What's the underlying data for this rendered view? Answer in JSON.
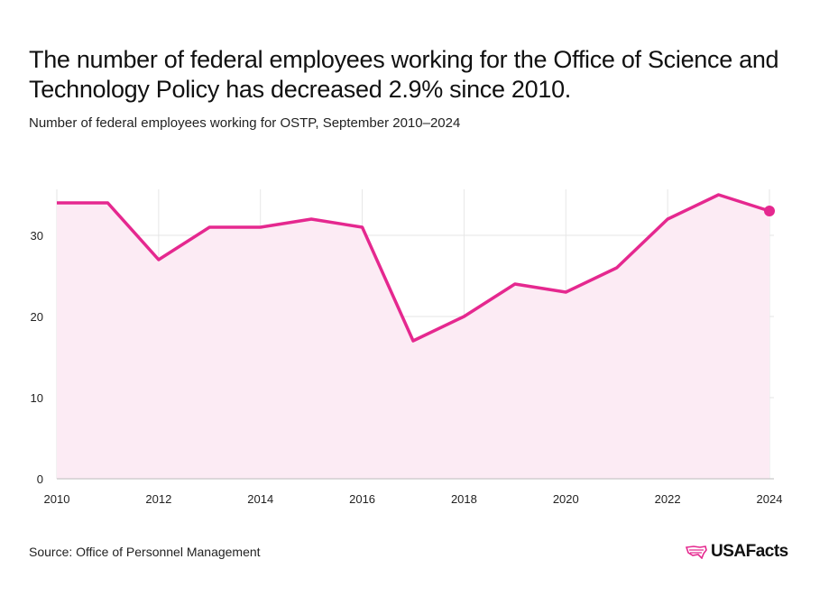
{
  "title": "The number of federal employees working for the Office of Science and Technology Policy has decreased 2.9% since 2010.",
  "subtitle": "Number of federal employees working for OSTP, September 2010–2024",
  "source": "Source: Office of Personnel Management",
  "logo": "USAFacts",
  "colors": {
    "line": "#e5288f",
    "fill": "#fcebf4",
    "grid": "#e6e6e6"
  },
  "chart_data": {
    "type": "area",
    "x": [
      2010,
      2011,
      2012,
      2013,
      2014,
      2015,
      2016,
      2017,
      2018,
      2019,
      2020,
      2021,
      2022,
      2023,
      2024
    ],
    "values": [
      34,
      34,
      27,
      31,
      31,
      32,
      31,
      17,
      20,
      24,
      23,
      26,
      32,
      35,
      33
    ],
    "xlim": [
      2010,
      2024
    ],
    "ylim": [
      0,
      37
    ],
    "xticks": [
      "2010",
      "2012",
      "2014",
      "2016",
      "2018",
      "2020",
      "2022",
      "2024"
    ],
    "yticks": [
      "0",
      "10",
      "20",
      "30"
    ],
    "grid": true,
    "xlabel": "",
    "ylabel": "",
    "highlight_last_point": true
  }
}
